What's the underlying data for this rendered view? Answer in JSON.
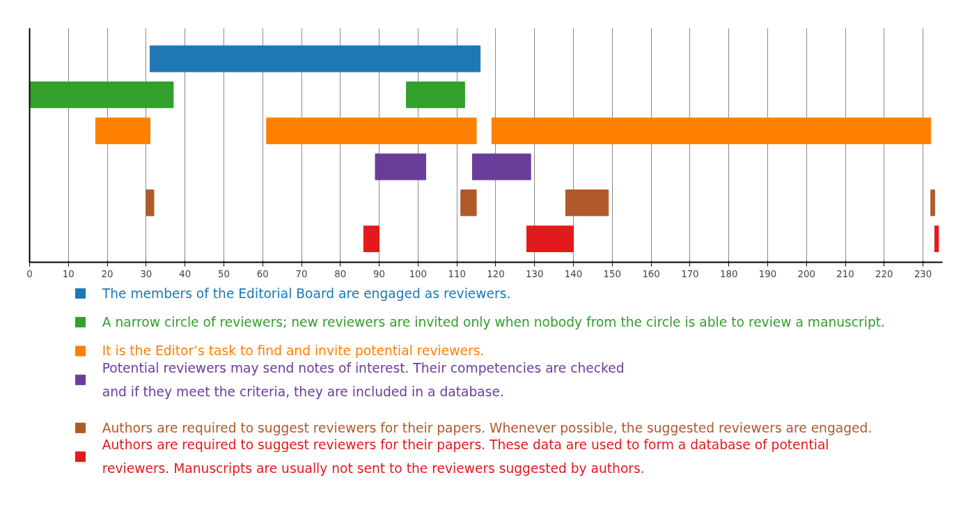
{
  "chart_data": {
    "type": "bar",
    "orientation": "horizontal",
    "categories": [
      null,
      null,
      null,
      null,
      null,
      null
    ],
    "xlim": [
      0,
      235
    ],
    "xticks": [
      0,
      10,
      20,
      30,
      40,
      50,
      60,
      70,
      80,
      90,
      100,
      110,
      120,
      130,
      140,
      150,
      160,
      170,
      180,
      190,
      200,
      210,
      220,
      230
    ],
    "grid": "x",
    "legend": "bottom",
    "tick_labels": "x",
    "series": [
      {
        "name": "The members of the Editorial Board are engaged as reviewers.",
        "color": "#1f77b4",
        "values": [
          85,
          null,
          null,
          null,
          null,
          null
        ],
        "base": [
          31,
          null,
          null,
          null,
          null,
          null
        ]
      },
      {
        "name": "A narrow circle of reviewers; new reviewers are invited only when nobody from the circle is able to review a manuscript.",
        "color": "#33a02c",
        "values": [
          null,
          37,
          null,
          null,
          null,
          null
        ],
        "base": [
          null,
          0,
          null,
          null,
          null,
          null
        ]
      },
      {
        "color": "#33a02c",
        "values": [
          null,
          15,
          null,
          null,
          null,
          null
        ],
        "base": [
          null,
          97,
          null,
          null,
          null,
          null
        ]
      },
      {
        "name": "It is the Editor’s task to find and invite potential reviewers.",
        "color": "#ff7f00",
        "values": [
          null,
          null,
          14,
          null,
          null,
          null
        ],
        "base": [
          null,
          null,
          17,
          null,
          null,
          null
        ]
      },
      {
        "color": "#ff7f00",
        "values": [
          null,
          null,
          54,
          null,
          null,
          null
        ],
        "base": [
          null,
          null,
          61,
          null,
          null,
          null
        ]
      },
      {
        "color": "#ff7f00",
        "values": [
          null,
          null,
          113,
          null,
          null,
          null
        ],
        "base": [
          null,
          null,
          119,
          null,
          null,
          null
        ]
      },
      {
        "name": "Potential reviewers may send notes of interest. Their competencies are checked\nand if they meet the criteria, they are included in a database.",
        "color": "#6a3d9a",
        "values": [
          null,
          null,
          null,
          13,
          null,
          null
        ],
        "base": [
          null,
          null,
          null,
          89,
          null,
          null
        ]
      },
      {
        "color": "#6a3d9a",
        "values": [
          null,
          null,
          null,
          15,
          null,
          null
        ],
        "base": [
          null,
          null,
          null,
          114,
          null,
          null
        ]
      },
      {
        "name": "Authors are required to suggest reviewers for their papers. Whenever possible, the suggested reviewers are engaged.",
        "color": "#b15928",
        "values": [
          null,
          null,
          null,
          null,
          2,
          null
        ],
        "base": [
          null,
          null,
          null,
          null,
          30,
          null
        ]
      },
      {
        "color": "#b15928",
        "values": [
          null,
          null,
          null,
          null,
          4,
          null
        ],
        "base": [
          null,
          null,
          null,
          null,
          111,
          null
        ]
      },
      {
        "color": "#b15928",
        "values": [
          null,
          null,
          null,
          null,
          11,
          null
        ],
        "base": [
          null,
          null,
          null,
          null,
          138,
          null
        ]
      },
      {
        "color": "#b15928",
        "values": [
          null,
          null,
          null,
          null,
          1,
          null
        ],
        "base": [
          null,
          null,
          null,
          null,
          232,
          null
        ]
      },
      {
        "name": "Authors are required to suggest reviewers for their papers. These data are used to form a database of potential\nreviewers. Manuscripts are usually not sent to the reviewers suggested by authors.",
        "color": "#e31a1c",
        "values": [
          null,
          null,
          null,
          null,
          null,
          4
        ],
        "base": [
          null,
          null,
          null,
          null,
          null,
          86
        ]
      },
      {
        "color": "#e31a1c",
        "values": [
          null,
          null,
          null,
          null,
          null,
          12
        ],
        "base": [
          null,
          null,
          null,
          null,
          null,
          128
        ]
      },
      {
        "color": "#e31a1c",
        "values": [
          null,
          null,
          null,
          null,
          null,
          1
        ],
        "base": [
          null,
          null,
          null,
          null,
          null,
          233
        ]
      }
    ]
  }
}
